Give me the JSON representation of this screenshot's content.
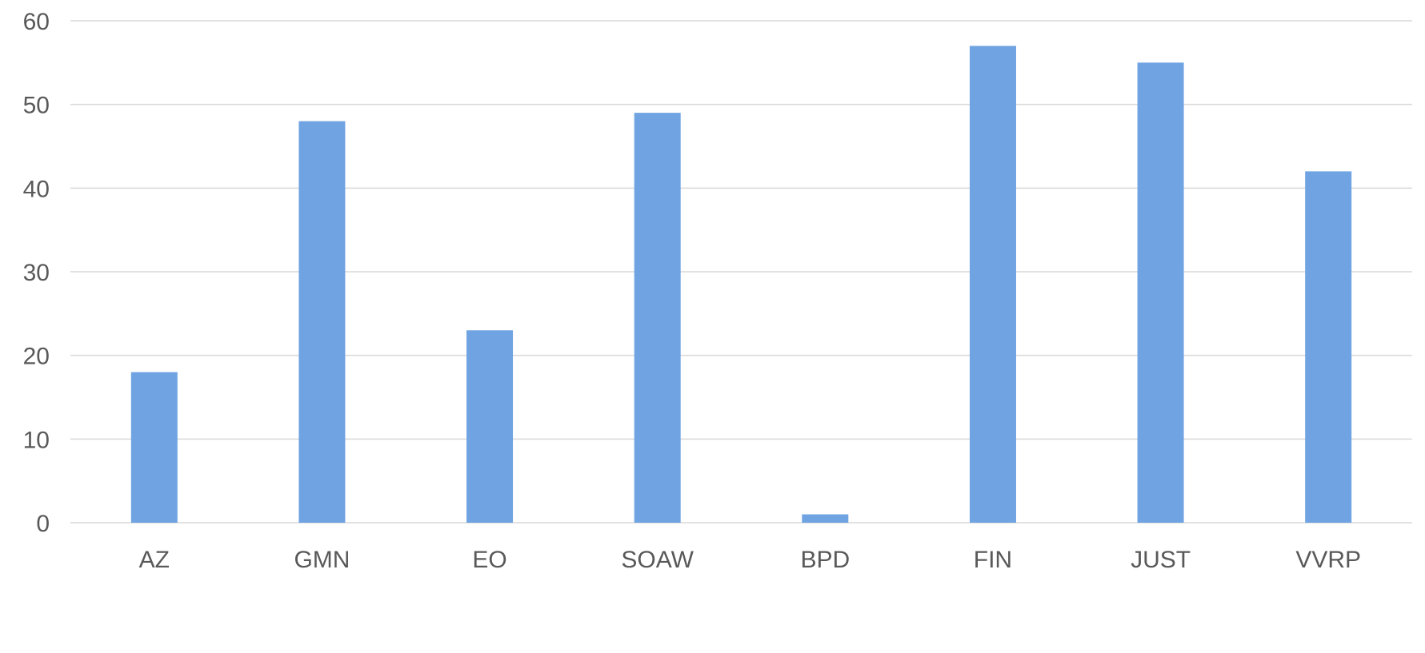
{
  "chart_data": {
    "type": "bar",
    "title": "",
    "xlabel": "",
    "ylabel": "",
    "categories": [
      "AZ",
      "GMN",
      "EO",
      "SOAW",
      "BPD",
      "FIN",
      "JUST",
      "VVRP"
    ],
    "values": [
      18,
      48,
      23,
      49,
      1,
      57,
      55,
      42
    ],
    "ylim": [
      0,
      60
    ],
    "yticks": [
      0,
      10,
      20,
      30,
      40,
      50,
      60
    ],
    "grid": true,
    "legend": "none",
    "bar_color": "#6fa3e2",
    "grid_color": "#d9d9d9",
    "text_color": "#595959"
  }
}
